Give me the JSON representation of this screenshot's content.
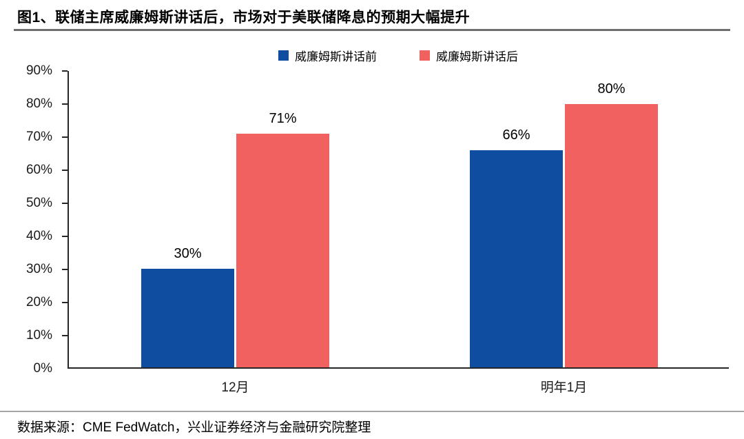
{
  "header": {
    "title": "图1、联储主席威廉姆斯讲话后，市场对于美联储降息的预期大幅提升"
  },
  "chart_data": {
    "type": "bar",
    "categories": [
      "12月",
      "明年1月"
    ],
    "series": [
      {
        "name": "威廉姆斯讲话前",
        "color": "#0E4DA0",
        "values": [
          30,
          66
        ]
      },
      {
        "name": "威廉姆斯讲话后",
        "color": "#F0615F",
        "values": [
          71,
          80
        ]
      }
    ],
    "data_labels": [
      [
        "30%",
        "66%"
      ],
      [
        "71%",
        "80%"
      ]
    ],
    "value_suffix": "%",
    "ylim": [
      0,
      90
    ],
    "ytick_step": 10,
    "ytick_labels": [
      "0%",
      "10%",
      "20%",
      "30%",
      "40%",
      "50%",
      "60%",
      "70%",
      "80%",
      "90%"
    ],
    "grid": false,
    "legend_position": "top-center",
    "title": "",
    "xlabel": "",
    "ylabel": ""
  },
  "footer": {
    "source": "数据来源：CME FedWatch，兴业证券经济与金融研究院整理"
  }
}
